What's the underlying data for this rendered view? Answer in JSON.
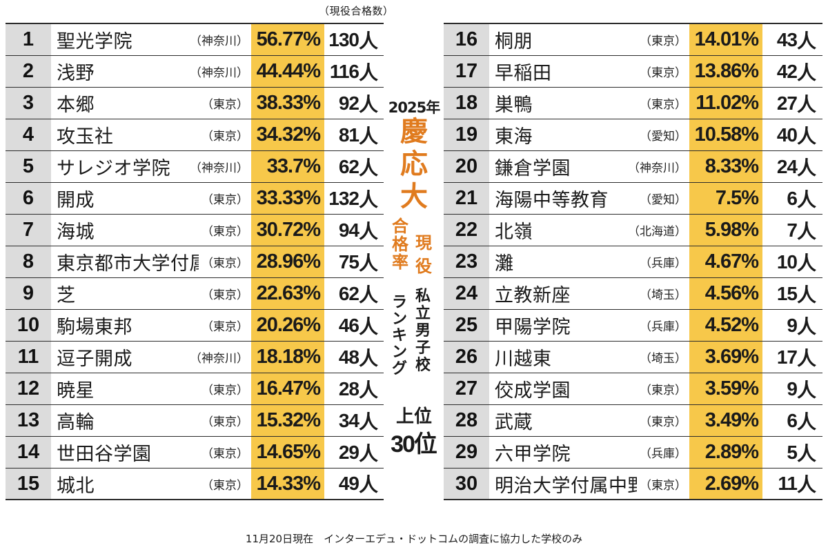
{
  "header_note": "（現役合格数）",
  "center": {
    "year": "2025年",
    "brand_chars": [
      "慶",
      "応",
      "大"
    ],
    "rate_chars": [
      "合",
      "格",
      "率"
    ],
    "active_chars": [
      "現",
      "役"
    ],
    "ranking_chars": [
      "ラ",
      "ン",
      "キ",
      "ン",
      "グ"
    ],
    "subject_chars": [
      "私",
      "立",
      "男",
      "子",
      "校"
    ],
    "top_chars": "上位",
    "top_number": "30",
    "top_unit": "位"
  },
  "footnote": "11月20日現在　インターエデュ・ドットコムの調査に協力した学校のみ",
  "rankings_left": [
    {
      "rank": "1",
      "school": "聖光学院",
      "pref": "（神奈川）",
      "rate": "56.77%",
      "count": "130",
      "unit": "人"
    },
    {
      "rank": "2",
      "school": "浅野",
      "pref": "（神奈川）",
      "rate": "44.44%",
      "count": "116",
      "unit": "人"
    },
    {
      "rank": "3",
      "school": "本郷",
      "pref": "（東京）",
      "rate": "38.33%",
      "count": "92",
      "unit": "人"
    },
    {
      "rank": "4",
      "school": "攻玉社",
      "pref": "（東京）",
      "rate": "34.32%",
      "count": "81",
      "unit": "人"
    },
    {
      "rank": "5",
      "school": "サレジオ学院",
      "pref": "（神奈川）",
      "rate": "33.7%",
      "count": "62",
      "unit": "人"
    },
    {
      "rank": "6",
      "school": "開成",
      "pref": "（東京）",
      "rate": "33.33%",
      "count": "132",
      "unit": "人"
    },
    {
      "rank": "7",
      "school": "海城",
      "pref": "（東京）",
      "rate": "30.72%",
      "count": "94",
      "unit": "人"
    },
    {
      "rank": "8",
      "school": "東京都市大学付属",
      "pref": "（東京）",
      "rate": "28.96%",
      "count": "75",
      "unit": "人"
    },
    {
      "rank": "9",
      "school": "芝",
      "pref": "（東京）",
      "rate": "22.63%",
      "count": "62",
      "unit": "人"
    },
    {
      "rank": "10",
      "school": "駒場東邦",
      "pref": "（東京）",
      "rate": "20.26%",
      "count": "46",
      "unit": "人"
    },
    {
      "rank": "11",
      "school": "逗子開成",
      "pref": "（神奈川）",
      "rate": "18.18%",
      "count": "48",
      "unit": "人"
    },
    {
      "rank": "12",
      "school": "暁星",
      "pref": "（東京）",
      "rate": "16.47%",
      "count": "28",
      "unit": "人"
    },
    {
      "rank": "13",
      "school": "高輪",
      "pref": "（東京）",
      "rate": "15.32%",
      "count": "34",
      "unit": "人"
    },
    {
      "rank": "14",
      "school": "世田谷学園",
      "pref": "（東京）",
      "rate": "14.65%",
      "count": "29",
      "unit": "人"
    },
    {
      "rank": "15",
      "school": "城北",
      "pref": "（東京）",
      "rate": "14.33%",
      "count": "49",
      "unit": "人"
    }
  ],
  "rankings_right": [
    {
      "rank": "16",
      "school": "桐朋",
      "pref": "（東京）",
      "rate": "14.01%",
      "count": "43",
      "unit": "人"
    },
    {
      "rank": "17",
      "school": "早稲田",
      "pref": "（東京）",
      "rate": "13.86%",
      "count": "42",
      "unit": "人"
    },
    {
      "rank": "18",
      "school": "巣鴨",
      "pref": "（東京）",
      "rate": "11.02%",
      "count": "27",
      "unit": "人"
    },
    {
      "rank": "19",
      "school": "東海",
      "pref": "（愛知）",
      "rate": "10.58%",
      "count": "40",
      "unit": "人"
    },
    {
      "rank": "20",
      "school": "鎌倉学園",
      "pref": "（神奈川）",
      "rate": "8.33%",
      "count": "24",
      "unit": "人"
    },
    {
      "rank": "21",
      "school": "海陽中等教育",
      "pref": "（愛知）",
      "rate": "7.5%",
      "count": "6",
      "unit": "人"
    },
    {
      "rank": "22",
      "school": "北嶺",
      "pref": "（北海道）",
      "rate": "5.98%",
      "count": "7",
      "unit": "人"
    },
    {
      "rank": "23",
      "school": "灘",
      "pref": "（兵庫）",
      "rate": "4.67%",
      "count": "10",
      "unit": "人"
    },
    {
      "rank": "24",
      "school": "立教新座",
      "pref": "（埼玉）",
      "rate": "4.56%",
      "count": "15",
      "unit": "人"
    },
    {
      "rank": "25",
      "school": "甲陽学院",
      "pref": "（兵庫）",
      "rate": "4.52%",
      "count": "9",
      "unit": "人"
    },
    {
      "rank": "26",
      "school": "川越東",
      "pref": "（埼玉）",
      "rate": "3.69%",
      "count": "17",
      "unit": "人"
    },
    {
      "rank": "27",
      "school": "佼成学園",
      "pref": "（東京）",
      "rate": "3.59%",
      "count": "9",
      "unit": "人"
    },
    {
      "rank": "28",
      "school": "武蔵",
      "pref": "（東京）",
      "rate": "3.49%",
      "count": "6",
      "unit": "人"
    },
    {
      "rank": "29",
      "school": "六甲学院",
      "pref": "（兵庫）",
      "rate": "2.89%",
      "count": "5",
      "unit": "人"
    },
    {
      "rank": "30",
      "school": "明治大学付属中野",
      "pref": "（東京）",
      "rate": "2.69%",
      "count": "11",
      "unit": "人"
    }
  ],
  "colors": {
    "rate_highlight": "#f7c84a",
    "rank_bg": "#dcdcdc",
    "title_orange": "#e07b1e",
    "rule": "#2a2a2a"
  }
}
